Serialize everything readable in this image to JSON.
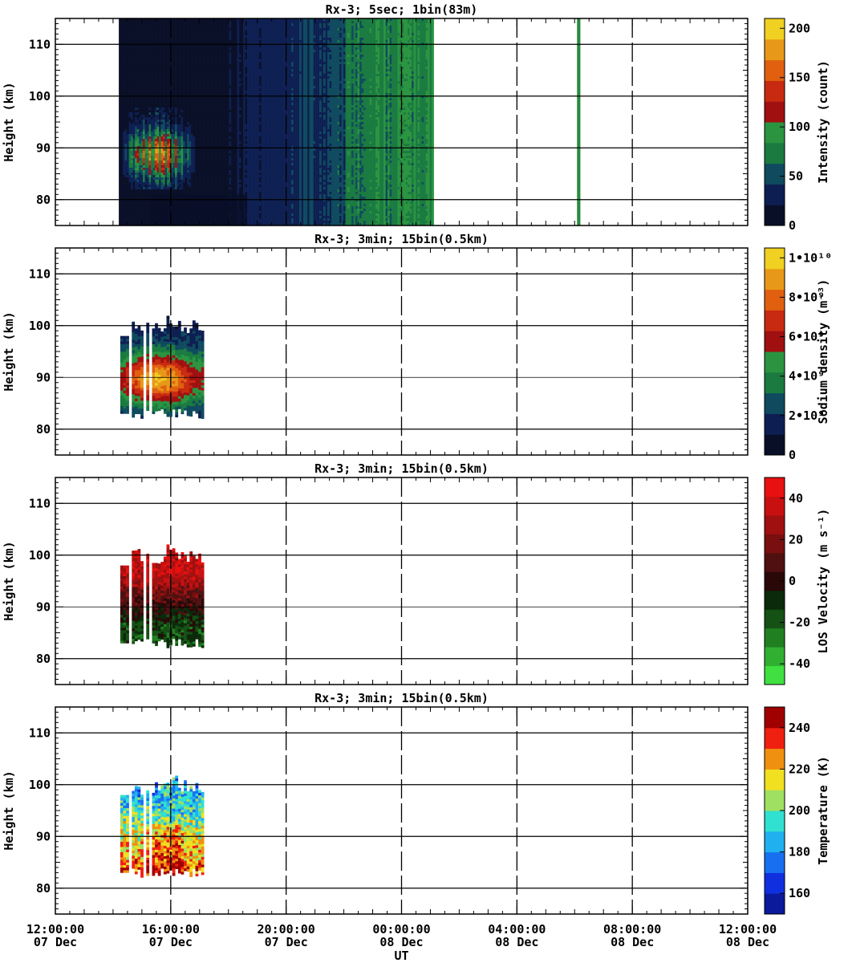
{
  "figure": {
    "xlabel": "UT",
    "x_ticks": [
      {
        "time": "12:00:00",
        "date": "07 Dec"
      },
      {
        "time": "16:00:00",
        "date": "07 Dec"
      },
      {
        "time": "20:00:00",
        "date": "07 Dec"
      },
      {
        "time": "00:00:00",
        "date": "08 Dec"
      },
      {
        "time": "04:00:00",
        "date": "08 Dec"
      },
      {
        "time": "08:00:00",
        "date": "08 Dec"
      },
      {
        "time": "12:00:00",
        "date": "08 Dec"
      }
    ]
  },
  "chart_data": [
    {
      "type": "heatmap",
      "title": "Rx-3;  5sec; 1bin(83m)",
      "xlabel": "UT",
      "ylabel": "Height (km)",
      "xlim": [
        "2021-12-07T12:00:00",
        "2021-12-08T12:00:00"
      ],
      "ylim": [
        75,
        115
      ],
      "y_ticks": [
        80,
        90,
        100,
        110
      ],
      "grid": true,
      "colorbar": {
        "label": "Intensity (count)",
        "range": [
          0,
          210
        ],
        "ticks": [
          "0",
          "50",
          "100",
          "150",
          "200"
        ],
        "colors": [
          "#0a0f28",
          "#0d1f52",
          "#0f4a5e",
          "#1a7a40",
          "#2a9440",
          "#a01010",
          "#c82a10",
          "#e06010",
          "#e89818",
          "#f0d020"
        ]
      },
      "data_coverage": [
        {
          "start": "14:12",
          "end": "01:05",
          "note": "continuous"
        },
        {
          "start": "06:05",
          "end": "06:12",
          "note": "green band"
        }
      ],
      "features": [
        {
          "region": "sodium layer",
          "time_range": [
            "14:10",
            "17:00"
          ],
          "height_range": [
            83,
            98
          ],
          "peak_intensity": 150,
          "peak_height": 89
        }
      ]
    },
    {
      "type": "heatmap",
      "title": "Rx-3; 3min; 15bin(0.5km)",
      "xlabel": "UT",
      "ylabel": "Height (km)",
      "xlim": [
        "2021-12-07T12:00:00",
        "2021-12-08T12:00:00"
      ],
      "ylim": [
        75,
        115
      ],
      "y_ticks": [
        80,
        90,
        100,
        110
      ],
      "grid": true,
      "colorbar": {
        "label": "Sodium density (m⁻³)",
        "range": [
          0,
          10500000000.0
        ],
        "ticks": [
          "0",
          "2•10⁹",
          "4•10⁹",
          "6•10⁹",
          "8•10⁹",
          "1•10¹⁰"
        ],
        "colors": [
          "#0a0f28",
          "#0d1f52",
          "#0f4a5e",
          "#1a7a40",
          "#2a9440",
          "#a01010",
          "#c82a10",
          "#e06010",
          "#e89818",
          "#f0d020"
        ]
      },
      "data_coverage": [
        {
          "start": "14:15",
          "end": "17:05"
        }
      ],
      "features": [
        {
          "time_range": [
            "14:15",
            "17:05"
          ],
          "height_range": [
            82,
            101
          ],
          "peak_density": 8000000000.0,
          "peak_height": 89
        }
      ]
    },
    {
      "type": "heatmap",
      "title": "Rx-3; 3min; 15bin(0.5km)",
      "xlabel": "UT",
      "ylabel": "Height (km)",
      "xlim": [
        "2021-12-07T12:00:00",
        "2021-12-08T12:00:00"
      ],
      "ylim": [
        75,
        115
      ],
      "y_ticks": [
        80,
        90,
        100,
        110
      ],
      "grid": true,
      "colorbar": {
        "label": "LOS Velocity (m s⁻¹)",
        "range": [
          -50,
          50
        ],
        "ticks": [
          "-40",
          "-20",
          "0",
          "20",
          "40"
        ],
        "colors": [
          "#40e040",
          "#30b030",
          "#208020",
          "#155015",
          "#0a2a0a",
          "#2a0808",
          "#501010",
          "#7a0f0f",
          "#a01010",
          "#c81010",
          "#e81010"
        ]
      },
      "data_coverage": [
        {
          "start": "14:15",
          "end": "17:05"
        }
      ],
      "features": [
        {
          "time_range": [
            "14:15",
            "17:05"
          ],
          "height_range": [
            82,
            101
          ],
          "upper_velocity": 35,
          "lower_velocity": -15
        }
      ]
    },
    {
      "type": "heatmap",
      "title": "Rx-3; 3min; 15bin(0.5km)",
      "xlabel": "UT",
      "ylabel": "Height (km)",
      "xlim": [
        "2021-12-07T12:00:00",
        "2021-12-08T12:00:00"
      ],
      "ylim": [
        75,
        115
      ],
      "y_ticks": [
        80,
        90,
        100,
        110
      ],
      "grid": true,
      "colorbar": {
        "label": "Temperature (K)",
        "range": [
          150,
          250
        ],
        "ticks": [
          "160",
          "180",
          "200",
          "220",
          "240"
        ],
        "colors": [
          "#0a1a9a",
          "#1030e0",
          "#1870f0",
          "#20b0f0",
          "#30e0d0",
          "#a0e060",
          "#f0e020",
          "#f09010",
          "#f02010",
          "#a00000"
        ]
      },
      "data_coverage": [
        {
          "start": "14:15",
          "end": "17:05"
        }
      ],
      "features": [
        {
          "time_range": [
            "14:15",
            "17:05"
          ],
          "height_range": [
            82,
            101
          ],
          "lower_temperature": 230,
          "upper_temperature": 185
        }
      ]
    }
  ]
}
